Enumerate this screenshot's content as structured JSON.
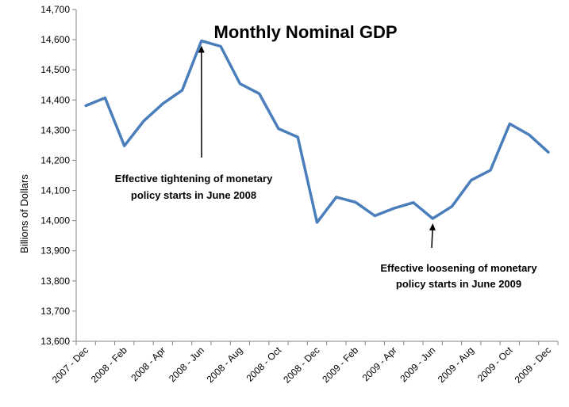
{
  "chart_data": {
    "type": "line",
    "title": "Monthly Nominal GDP",
    "ylabel": "Billions of Dollars",
    "xlabel": "",
    "ylim": [
      13600,
      14700
    ],
    "y_ticks": [
      13600,
      13700,
      13800,
      13900,
      14000,
      14100,
      14200,
      14300,
      14400,
      14500,
      14600,
      14700
    ],
    "y_tick_labels": [
      "13,600",
      "13,700",
      "13,800",
      "13,900",
      "14,000",
      "14,100",
      "14,200",
      "14,300",
      "14,400",
      "14,500",
      "14,600",
      "14,700"
    ],
    "x_labels": [
      "2007 - Dec",
      "2008 - Feb",
      "2008 - Apr",
      "2008 - Jun",
      "2008 - Aug",
      "2008 - Oct",
      "2008 - Dec",
      "2009 - Feb",
      "2009 - Apr",
      "2009 - Jun",
      "2009 - Aug",
      "2009 - Oct",
      "2009 - Dec"
    ],
    "x": [
      "2007 - Dec",
      "2008 - Jan",
      "2008 - Feb",
      "2008 - Mar",
      "2008 - Apr",
      "2008 - May",
      "2008 - Jun",
      "2008 - Jul",
      "2008 - Aug",
      "2008 - Sep",
      "2008 - Oct",
      "2008 - Nov",
      "2008 - Dec",
      "2009 - Jan",
      "2009 - Feb",
      "2009 - Mar",
      "2009 - Apr",
      "2009 - May",
      "2009 - Jun",
      "2009 - Jul",
      "2009 - Aug",
      "2009 - Sep",
      "2009 - Oct",
      "2009 - Nov",
      "2009 - Dec"
    ],
    "series": [
      {
        "name": "",
        "color": "#4a7ebb",
        "values": [
          14381,
          14407,
          14248,
          14330,
          14388,
          14432,
          14596,
          14578,
          14454,
          14421,
          14305,
          14277,
          13994,
          14078,
          14061,
          14016,
          14041,
          14060,
          14007,
          14047,
          14134,
          14167,
          14321,
          14285,
          14227
        ]
      }
    ],
    "grid": false,
    "legend": "none",
    "annotations": [
      {
        "lines": [
          "Effective tightening of monetary",
          "policy  starts in June 2008"
        ],
        "point": {
          "x": "2008 - Jun",
          "y": 14596
        }
      },
      {
        "lines": [
          "Effective loosening of  monetary",
          "policy  starts in June 2009"
        ],
        "point": {
          "x": "2009 - Jun",
          "y": 14007
        }
      }
    ]
  }
}
